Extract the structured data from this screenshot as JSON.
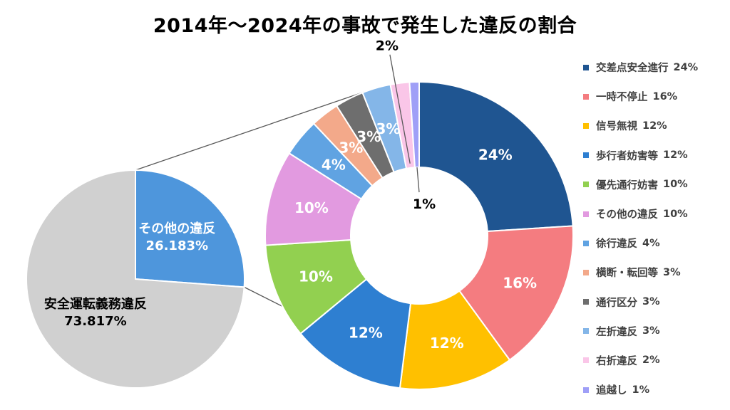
{
  "chart_data": [
    {
      "type": "pie",
      "variant": "doughnut",
      "title": "2014年〜2024年の事故で発生した違反の割合",
      "legend_position": "right",
      "slices": [
        {
          "name": "交差点安全進行",
          "value": 24,
          "color": "#1F5591"
        },
        {
          "name": "一時不停止",
          "value": 16,
          "color": "#F47C80"
        },
        {
          "name": "信号無視",
          "value": 12,
          "color": "#FFC000"
        },
        {
          "name": "歩行者妨害等",
          "value": 12,
          "color": "#2E7FD1"
        },
        {
          "name": "優先通行妨害",
          "value": 10,
          "color": "#92D050"
        },
        {
          "name": "その他の違反",
          "value": 10,
          "color": "#E29AE0"
        },
        {
          "name": "徐行違反",
          "value": 4,
          "color": "#60A3E2"
        },
        {
          "name": "横断・転回等",
          "value": 3,
          "color": "#F3A98A"
        },
        {
          "name": "通行区分",
          "value": 3,
          "color": "#6E6E6E"
        },
        {
          "name": "左折違反",
          "value": 3,
          "color": "#84B6E8"
        },
        {
          "name": "右折違反",
          "value": 2,
          "color": "#FAC6E8"
        },
        {
          "name": "追越し",
          "value": 1,
          "color": "#9F9FF7"
        }
      ]
    },
    {
      "type": "pie",
      "slices": [
        {
          "name": "その他の違反",
          "value": 26.183,
          "label_value": "26.183%",
          "color": "#4E96DC"
        },
        {
          "name": "安全運転義務違反",
          "value": 73.817,
          "label_value": "73.817%",
          "color": "#D0D0D0"
        }
      ]
    }
  ]
}
